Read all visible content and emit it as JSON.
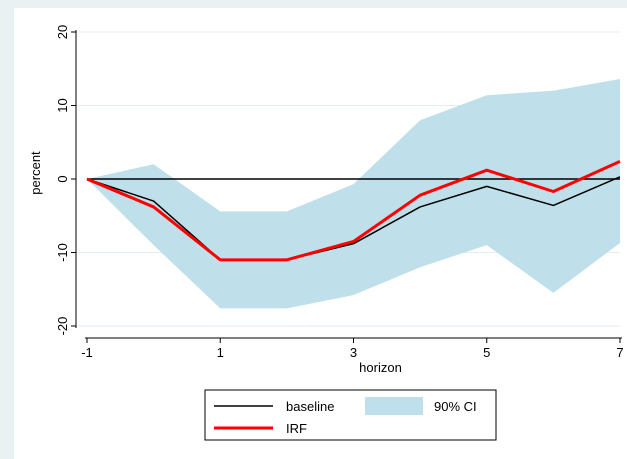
{
  "chart_data": {
    "type": "line",
    "title": "",
    "xlabel": "horizon",
    "ylabel": "percent",
    "xlim": [
      -1,
      7
    ],
    "ylim": [
      -20,
      20
    ],
    "x_ticks": [
      -1,
      1,
      3,
      5,
      7
    ],
    "y_ticks": [
      -20,
      -10,
      0,
      10,
      20
    ],
    "grid": "horizontal",
    "x": [
      -1,
      0,
      1,
      2,
      3,
      4,
      5,
      6,
      7
    ],
    "series": [
      {
        "name": "baseline",
        "color": "#000000",
        "values": [
          0,
          -3.0,
          -11.0,
          -11.0,
          -8.8,
          -3.8,
          -1.0,
          -3.6,
          0.3
        ]
      },
      {
        "name": "IRF",
        "color": "#ff0000",
        "values": [
          0,
          -3.8,
          -11.0,
          -11.0,
          -8.5,
          -2.2,
          1.2,
          -1.7,
          2.4
        ]
      }
    ],
    "band": {
      "name": "90% CI",
      "color": "#bfe0ea",
      "upper": [
        0,
        2.0,
        -4.4,
        -4.4,
        -0.7,
        8.0,
        11.4,
        12.0,
        13.6
      ],
      "lower": [
        0,
        -9.0,
        -17.6,
        -17.6,
        -15.8,
        -12.0,
        -9.0,
        -15.5,
        -8.7
      ]
    },
    "reference_line": 0,
    "legend": {
      "placement": "bottom",
      "entries": [
        "baseline",
        "90% CI",
        "IRF"
      ]
    }
  }
}
